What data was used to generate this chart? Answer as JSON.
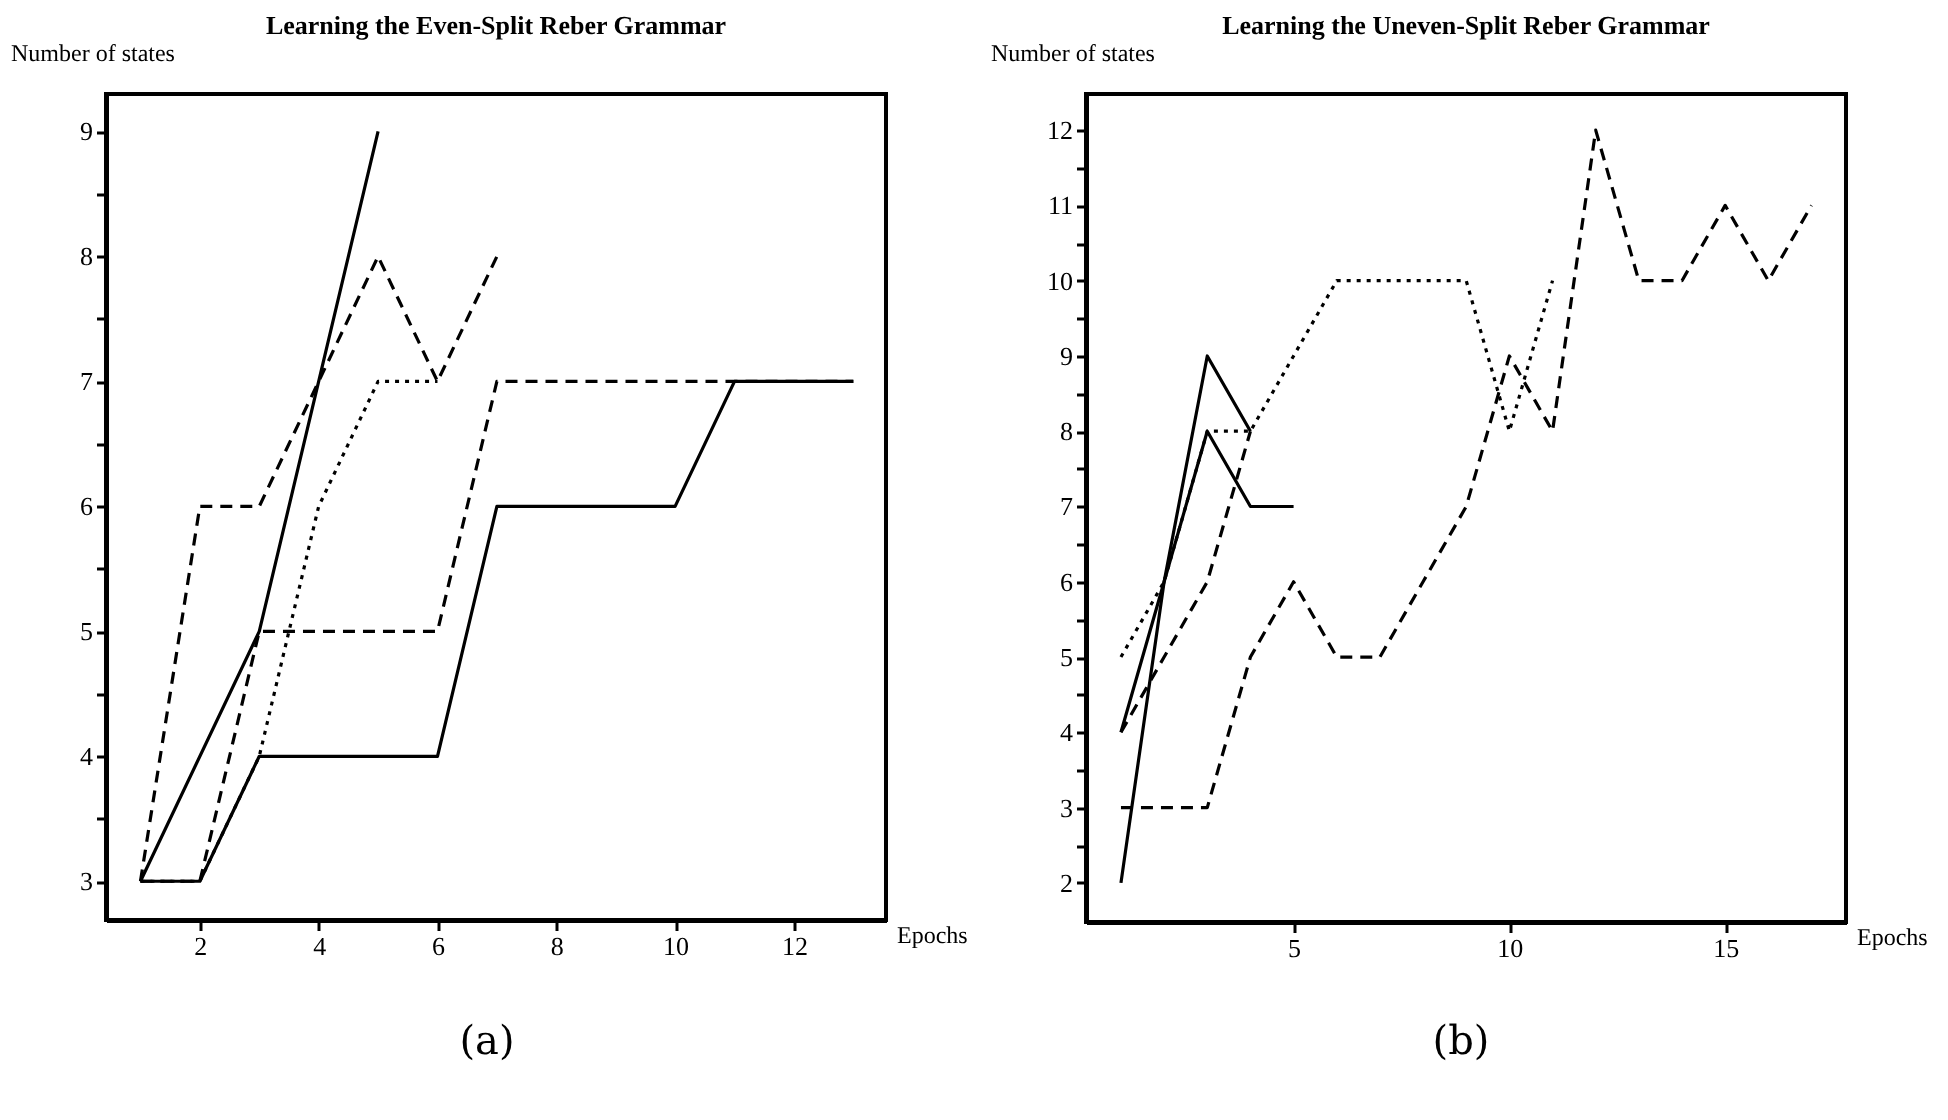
{
  "chart_data": [
    {
      "type": "line",
      "title": "Learning the Even-Split Reber Grammar",
      "xlabel": "Epochs",
      "ylabel": "Number of states",
      "annotations": [
        "(a)"
      ],
      "grid": false,
      "legend": false,
      "xlim": [
        0.42,
        13.55
      ],
      "xticks": [
        2,
        4,
        6,
        8,
        10,
        12
      ],
      "ylim": [
        2.69,
        9.3
      ],
      "yticks": [
        3,
        {
          "value": 3.5,
          "label": null
        },
        4,
        {
          "value": 4.5,
          "label": null
        },
        5,
        {
          "value": 5.5,
          "label": null
        },
        6,
        {
          "value": 6.5,
          "label": null
        },
        7,
        {
          "value": 7.5,
          "label": null
        },
        8,
        {
          "value": 8.5,
          "label": null
        },
        9
      ],
      "series": [
        {
          "color": "#000000",
          "line_style": "solid",
          "x": [
            1,
            3,
            5
          ],
          "values": [
            3,
            5,
            9
          ]
        },
        {
          "color": "#000000",
          "line_style": "dashed",
          "x": [
            1,
            2,
            3,
            4,
            5,
            6,
            7
          ],
          "values": [
            3,
            6,
            6,
            7,
            8,
            7,
            8
          ]
        },
        {
          "color": "#000000",
          "line_style": "dotted",
          "x": [
            1,
            2,
            3,
            4,
            5,
            6
          ],
          "values": [
            3,
            3,
            4,
            6,
            7,
            7
          ]
        },
        {
          "color": "#000000",
          "line_style": "dashed",
          "x": [
            1,
            2,
            3,
            4,
            5,
            6,
            7,
            8,
            9,
            10,
            11,
            12,
            13
          ],
          "values": [
            3,
            3,
            5,
            5,
            5,
            5,
            7,
            7,
            7,
            7,
            7,
            7,
            7
          ]
        },
        {
          "color": "#000000",
          "line_style": "solid",
          "x": [
            1,
            2,
            3,
            4,
            5,
            6,
            7,
            8,
            9,
            10,
            11,
            12,
            13
          ],
          "values": [
            3,
            3,
            4,
            4,
            4,
            4,
            6,
            6,
            6,
            6,
            7,
            7,
            7
          ]
        }
      ]
    },
    {
      "type": "line",
      "title": "Learning the Uneven-Split Reber Grammar",
      "xlabel": "Epochs",
      "ylabel": "Number of states",
      "annotations": [
        "(b)"
      ],
      "grid": false,
      "legend": false,
      "xlim": [
        0.19,
        17.8
      ],
      "xticks": [
        5,
        10,
        15
      ],
      "ylim": [
        1.48,
        12.48
      ],
      "yticks": [
        2,
        {
          "value": 2.5,
          "label": null
        },
        3,
        {
          "value": 3.5,
          "label": null
        },
        4,
        {
          "value": 4.5,
          "label": null
        },
        5,
        {
          "value": 5.5,
          "label": null
        },
        6,
        {
          "value": 6.5,
          "label": null
        },
        7,
        {
          "value": 7.5,
          "label": null
        },
        8,
        {
          "value": 8.5,
          "label": null
        },
        9,
        {
          "value": 9.5,
          "label": null
        },
        10,
        {
          "value": 10.5,
          "label": null
        },
        11,
        {
          "value": 11.5,
          "label": null
        },
        12
      ],
      "series": [
        {
          "color": "#000000",
          "line_style": "solid",
          "x": [
            1,
            2,
            3,
            4,
            5
          ],
          "values": [
            4,
            6,
            8,
            7,
            7
          ]
        },
        {
          "color": "#000000",
          "line_style": "solid",
          "x": [
            1,
            2,
            3,
            4
          ],
          "values": [
            2,
            6,
            9,
            8
          ]
        },
        {
          "color": "#000000",
          "line_style": "dotted",
          "x": [
            1,
            2,
            3,
            4,
            5,
            6,
            7,
            8,
            9,
            10,
            11
          ],
          "values": [
            5,
            6,
            8,
            8,
            9,
            10,
            10,
            10,
            10,
            8,
            10
          ]
        },
        {
          "color": "#000000",
          "line_style": "dashed",
          "x": [
            1,
            2,
            3,
            4
          ],
          "values": [
            4,
            5,
            6,
            8
          ]
        },
        {
          "color": "#000000",
          "line_style": "dashed",
          "x": [
            1,
            2,
            3,
            4,
            5,
            6,
            7,
            8,
            9,
            10,
            11,
            12,
            13,
            14,
            15,
            16,
            17
          ],
          "values": [
            3,
            3,
            3,
            5,
            6,
            5,
            5,
            6,
            7,
            9,
            8,
            12,
            10,
            10,
            11,
            10,
            11
          ]
        }
      ]
    }
  ]
}
